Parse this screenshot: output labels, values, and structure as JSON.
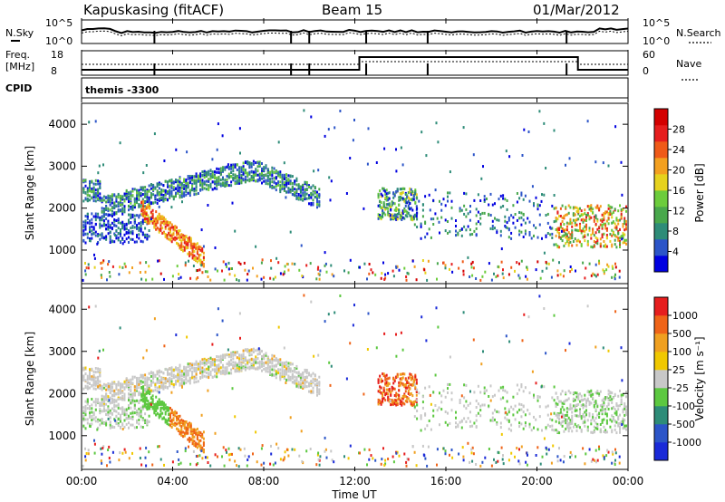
{
  "header": {
    "radar": "Kapuskasing (fitACF)",
    "beam": "Beam 15",
    "date": "01/Mar/2012"
  },
  "top_panels": {
    "nsky_label": "N.Sky",
    "nsearch_label": "N.Search",
    "nsky_ticks": [
      "10^5",
      "10^0"
    ],
    "nsearch_ticks": [
      "10^5",
      "10^0"
    ],
    "freq_label": "Freq.",
    "freq_unit": "[MHz]",
    "freq_ticks": [
      "18",
      "8"
    ],
    "nave_label": "Nave",
    "nave_ticks": [
      "60",
      "0"
    ],
    "cpid_label": "CPID",
    "cpid_value": "themis -3300"
  },
  "chart_data": [
    {
      "type": "heatmap",
      "name": "power",
      "ylabel": "Slant Range [km]",
      "y_ticks": [
        "1000",
        "2000",
        "3000",
        "4000"
      ],
      "ylim": [
        200,
        4500
      ],
      "xlim": [
        0,
        24
      ],
      "colorbar_label": "Power [dB]",
      "colorbar_ticks": [
        "4",
        "8",
        "12",
        "16",
        "20",
        "24",
        "28"
      ],
      "colors": [
        "#0000e0",
        "#2c55c8",
        "#2e8c78",
        "#49a84c",
        "#6ccc3c",
        "#e6d21e",
        "#f3a020",
        "#ef5a18",
        "#e61e1e",
        "#d30000"
      ]
    },
    {
      "type": "heatmap",
      "name": "velocity",
      "ylabel": "Slant Range [km]",
      "y_ticks": [
        "1000",
        "2000",
        "3000",
        "4000"
      ],
      "ylim": [
        200,
        4500
      ],
      "xlim": [
        0,
        24
      ],
      "colorbar_label": "Velocity [m s⁻¹]",
      "colorbar_ticks": [
        "1000",
        "500",
        "100",
        "25",
        "-25",
        "-100",
        "-500",
        "-1000"
      ],
      "colors": [
        "#1a2ad8",
        "#2c55c8",
        "#2e8c78",
        "#5cc840",
        "#c8c8c8",
        "#f0c800",
        "#f0a020",
        "#ef6418",
        "#e61e1e"
      ]
    }
  ],
  "xaxis": {
    "ticks": [
      "00:00",
      "04:00",
      "08:00",
      "12:00",
      "16:00",
      "20:00",
      "00:00"
    ],
    "label": "Time UT"
  },
  "colors": {
    "nodata": "#ffffff",
    "frame": "#000000"
  }
}
